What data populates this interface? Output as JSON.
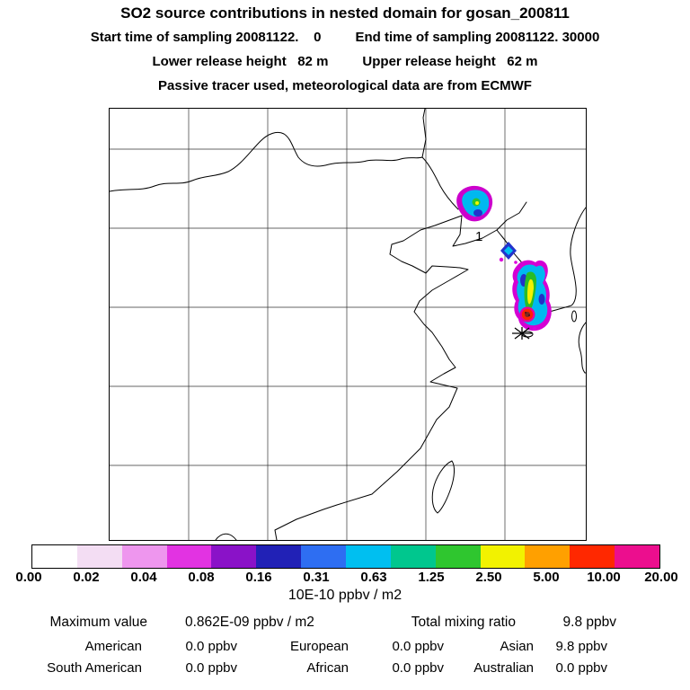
{
  "header": {
    "title": "SO2 source contributions in nested domain for gosan_200811",
    "line2_left": "Start time of sampling 20081122.    0",
    "line2_right": "End time of sampling 20081122. 30000",
    "line3_left": "Lower release height   82 m",
    "line3_right": "Upper release height   62 m",
    "line4": "Passive tracer used, meteorological data are from ECMWF"
  },
  "map": {
    "release_marker_label": "1",
    "receptor_marker": "asterisk-at-gosan"
  },
  "colorbar": {
    "units_label": "10E-10 ppbv / m2",
    "tick_labels": [
      "0.00",
      "0.02",
      "0.04",
      "0.08",
      "0.16",
      "0.31",
      "0.63",
      "1.25",
      "2.50",
      "5.00",
      "10.00",
      "20.00"
    ],
    "colors": [
      "#ffffff",
      "#f3ddf3",
      "#ee96ee",
      "#e233e2",
      "#8a12c8",
      "#2121b6",
      "#2e6ef2",
      "#00bff0",
      "#00c78e",
      "#2fc62f",
      "#f2f200",
      "#ffa000",
      "#ff2800",
      "#ec0e8e"
    ]
  },
  "stats": {
    "maximum_label": "Maximum value",
    "maximum_value": "0.862E-09 ppbv / m2",
    "total_label": "Total mixing ratio",
    "total_value": "9.8 ppbv",
    "regions": [
      {
        "label": "American",
        "value": "0.0 ppbv"
      },
      {
        "label": "European",
        "value": "0.0 ppbv"
      },
      {
        "label": "Asian",
        "value": "9.8 ppbv"
      },
      {
        "label": "South American",
        "value": "0.0 ppbv"
      },
      {
        "label": "African",
        "value": "0.0 ppbv"
      },
      {
        "label": "Australian",
        "value": "0.0 ppbv"
      }
    ]
  },
  "chart_data": {
    "type": "heatmap",
    "title": "SO2 source contributions in nested domain for gosan_200811",
    "subtitle": [
      "Start time of sampling 20081122. 0",
      "End time of sampling 20081122. 30000",
      "Lower release height 82 m",
      "Upper release height 62 m",
      "Passive tracer used, meteorological data are from ECMWF"
    ],
    "colorbar_levels": [
      0.0,
      0.02,
      0.04,
      0.08,
      0.16,
      0.31,
      0.63,
      1.25,
      2.5,
      5.0,
      10.0,
      20.0
    ],
    "colorbar_units": "10E-10 ppbv / m2",
    "maximum_value": "0.862E-09 ppbv / m2",
    "total_mixing_ratio_ppbv": 9.8,
    "contributions_ppbv": {
      "American": 0.0,
      "European": 0.0,
      "Asian": 9.8,
      "South American": 0.0,
      "African": 0.0,
      "Australian": 0.0
    },
    "map_region": "East Asia (China coast, Korea, Yellow Sea, Taiwan)",
    "plumes": [
      {
        "location": "northeast China / Liaoning",
        "intensity": "low-mid (cyan core with green-yellow center, magenta fringe)"
      },
      {
        "location": "north Yellow Sea near Yalu mouth",
        "intensity": "small blue diamond patch"
      },
      {
        "location": "western South Korea down to southwest tip",
        "intensity": "elongated plume, cyan/green/yellow with red maximum near southwest coast"
      }
    ],
    "markers": [
      {
        "symbol": "1",
        "meaning": "release point label",
        "approx_lon_lat": [
          123.3,
          39.4
        ]
      },
      {
        "symbol": "asterisk",
        "meaning": "receptor Gosan (Jeju)",
        "approx_lon_lat": [
          126.2,
          33.3
        ]
      }
    ]
  }
}
